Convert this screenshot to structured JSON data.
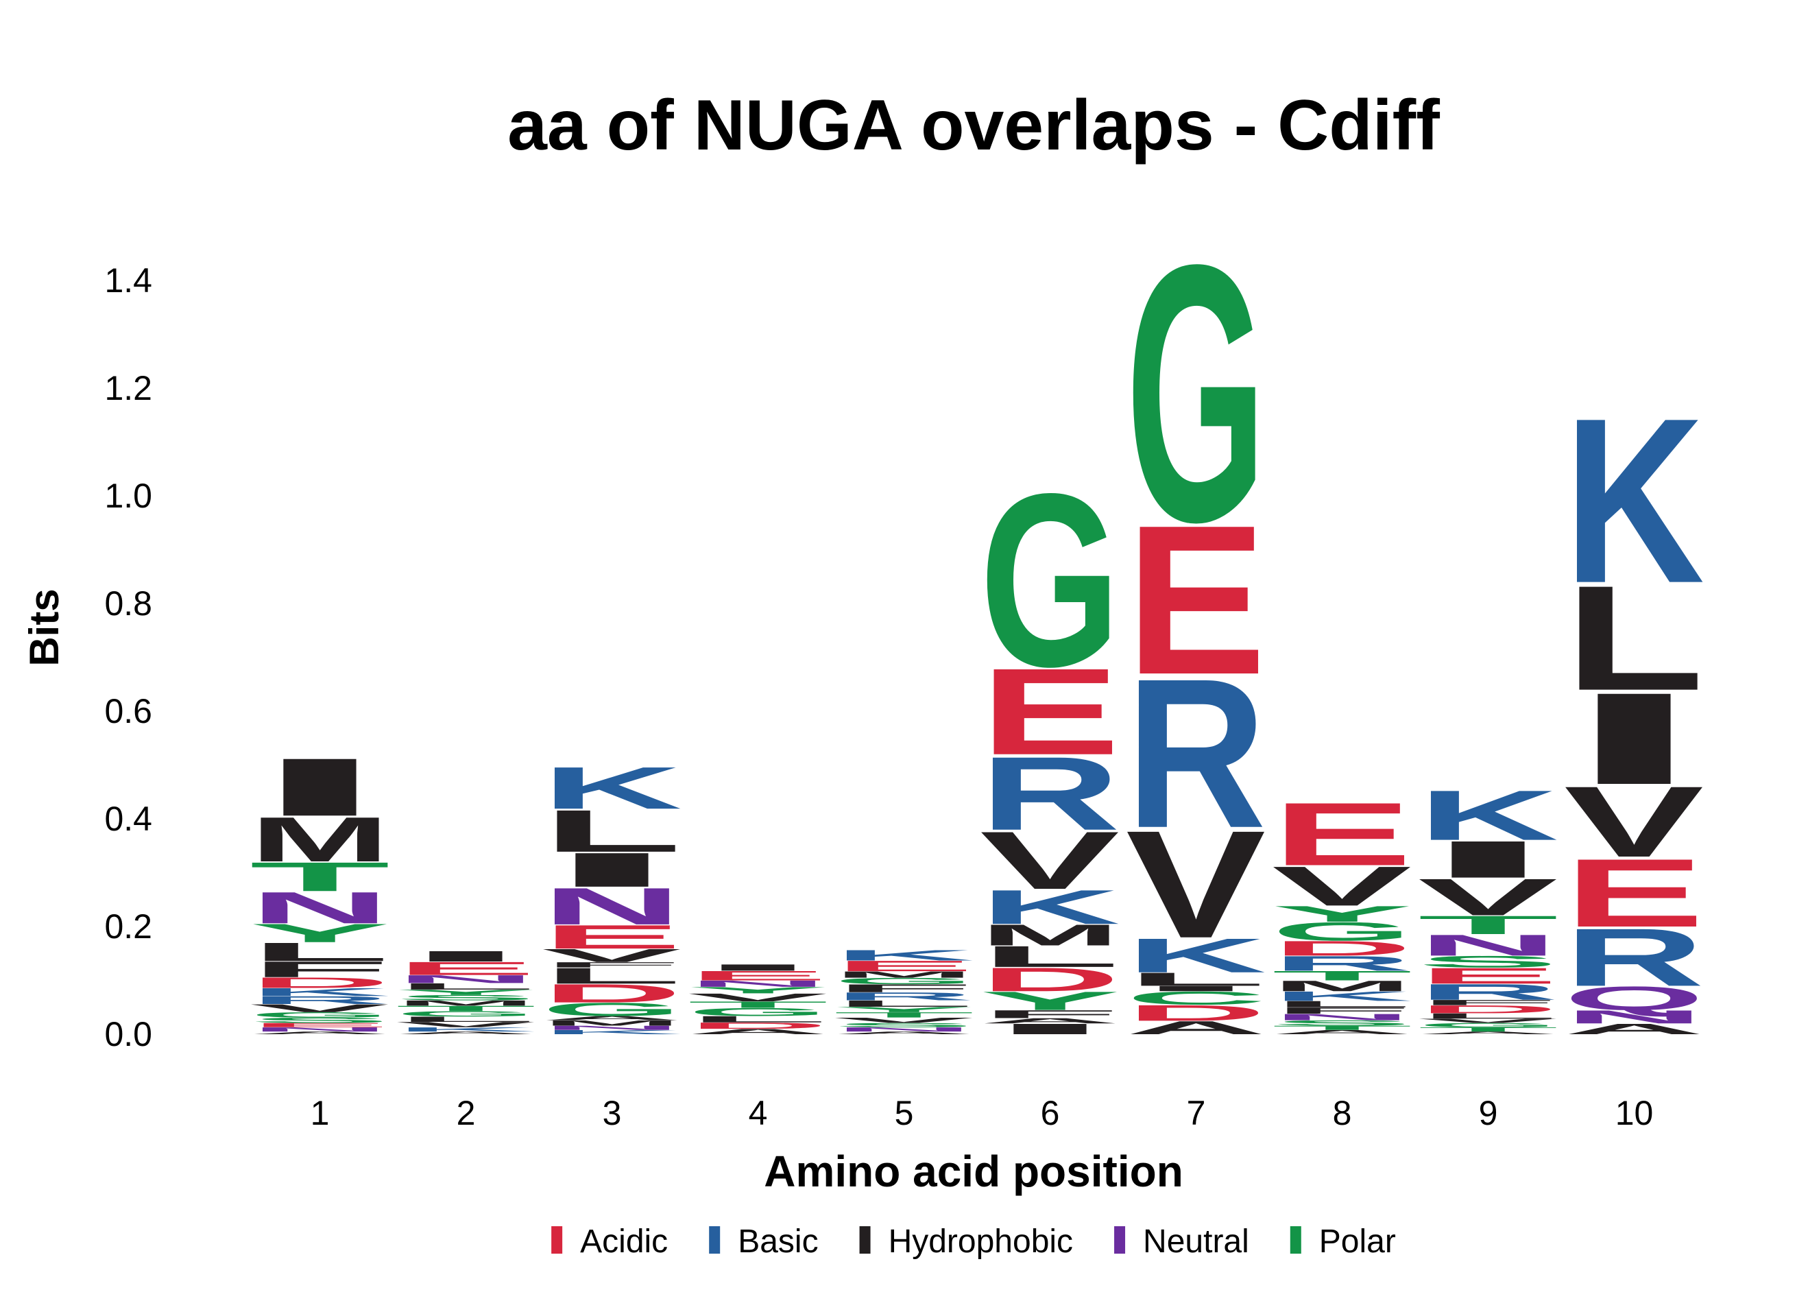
{
  "chart_data": {
    "type": "sequence-logo",
    "title": "aa of NUGA overlaps - Cdiff",
    "xlabel": "Amino acid position",
    "ylabel": "Bits",
    "ylim": [
      0,
      1.5
    ],
    "y_ticks": [
      "0.0",
      "0.2",
      "0.4",
      "0.6",
      "0.8",
      "1.0",
      "1.2",
      "1.4"
    ],
    "y_tick_values": [
      0.0,
      0.2,
      0.4,
      0.6,
      0.8,
      1.0,
      1.2,
      1.4
    ],
    "categories": [
      "1",
      "2",
      "3",
      "4",
      "5",
      "6",
      "7",
      "8",
      "9",
      "10"
    ],
    "grid": false,
    "legend_position": "bottom",
    "legend": [
      {
        "name": "Acidic",
        "color": "#d7263d"
      },
      {
        "name": "Basic",
        "color": "#265f9e"
      },
      {
        "name": "Hydrophobic",
        "color": "#231f20"
      },
      {
        "name": "Neutral",
        "color": "#6a2d9f"
      },
      {
        "name": "Polar",
        "color": "#139447"
      }
    ],
    "groups": {
      "D": "Acidic",
      "E": "Acidic",
      "K": "Basic",
      "R": "Basic",
      "H": "Basic",
      "A": "Hydrophobic",
      "V": "Hydrophobic",
      "L": "Hydrophobic",
      "I": "Hydrophobic",
      "P": "Hydrophobic",
      "W": "Hydrophobic",
      "F": "Hydrophobic",
      "M": "Hydrophobic",
      "N": "Neutral",
      "Q": "Neutral",
      "G": "Polar",
      "S": "Polar",
      "T": "Polar",
      "Y": "Polar",
      "C": "Polar"
    },
    "positions": [
      {
        "position": "1",
        "stack": [
          {
            "letter": "A",
            "bits": 0.005
          },
          {
            "letter": "N",
            "bits": 0.008
          },
          {
            "letter": "E",
            "bits": 0.008
          },
          {
            "letter": "S",
            "bits": 0.01
          },
          {
            "letter": "G",
            "bits": 0.01
          },
          {
            "letter": "V",
            "bits": 0.015
          },
          {
            "letter": "R",
            "bits": 0.015
          },
          {
            "letter": "K",
            "bits": 0.015
          },
          {
            "letter": "D",
            "bits": 0.02
          },
          {
            "letter": "F",
            "bits": 0.03
          },
          {
            "letter": "L",
            "bits": 0.035
          },
          {
            "letter": "Y",
            "bits": 0.035
          },
          {
            "letter": "N",
            "bits": 0.06
          },
          {
            "letter": "T",
            "bits": 0.055
          },
          {
            "letter": "M",
            "bits": 0.085
          },
          {
            "letter": "I",
            "bits": 0.11
          }
        ]
      },
      {
        "position": "2",
        "stack": [
          {
            "letter": "A",
            "bits": 0.005
          },
          {
            "letter": "K",
            "bits": 0.008
          },
          {
            "letter": "V",
            "bits": 0.01
          },
          {
            "letter": "L",
            "bits": 0.01
          },
          {
            "letter": "G",
            "bits": 0.01
          },
          {
            "letter": "T",
            "bits": 0.01
          },
          {
            "letter": "M",
            "bits": 0.01
          },
          {
            "letter": "S",
            "bits": 0.01
          },
          {
            "letter": "Y",
            "bits": 0.01
          },
          {
            "letter": "L",
            "bits": 0.012
          },
          {
            "letter": "N",
            "bits": 0.015
          },
          {
            "letter": "E",
            "bits": 0.025
          },
          {
            "letter": "I",
            "bits": 0.02
          }
        ]
      },
      {
        "position": "3",
        "stack": [
          {
            "letter": "K",
            "bits": 0.008
          },
          {
            "letter": "N",
            "bits": 0.008
          },
          {
            "letter": "M",
            "bits": 0.01
          },
          {
            "letter": "A",
            "bits": 0.008
          },
          {
            "letter": "G",
            "bits": 0.025
          },
          {
            "letter": "D",
            "bits": 0.035
          },
          {
            "letter": "L",
            "bits": 0.03
          },
          {
            "letter": "F",
            "bits": 0.01
          },
          {
            "letter": "V",
            "bits": 0.025
          },
          {
            "letter": "E",
            "bits": 0.045
          },
          {
            "letter": "N",
            "bits": 0.07
          },
          {
            "letter": "I",
            "bits": 0.065
          },
          {
            "letter": "L",
            "bits": 0.08
          },
          {
            "letter": "K",
            "bits": 0.08
          }
        ]
      },
      {
        "position": "4",
        "stack": [
          {
            "letter": "A",
            "bits": 0.01
          },
          {
            "letter": "D",
            "bits": 0.012
          },
          {
            "letter": "L",
            "bits": 0.012
          },
          {
            "letter": "G",
            "bits": 0.015
          },
          {
            "letter": "T",
            "bits": 0.012
          },
          {
            "letter": "V",
            "bits": 0.015
          },
          {
            "letter": "Y",
            "bits": 0.012
          },
          {
            "letter": "N",
            "bits": 0.012
          },
          {
            "letter": "E",
            "bits": 0.018
          },
          {
            "letter": "I",
            "bits": 0.012
          }
        ]
      },
      {
        "position": "5",
        "stack": [
          {
            "letter": "A",
            "bits": 0.005
          },
          {
            "letter": "N",
            "bits": 0.008
          },
          {
            "letter": "S",
            "bits": 0.008
          },
          {
            "letter": "V",
            "bits": 0.01
          },
          {
            "letter": "T",
            "bits": 0.01
          },
          {
            "letter": "Y",
            "bits": 0.01
          },
          {
            "letter": "L",
            "bits": 0.012
          },
          {
            "letter": "R",
            "bits": 0.015
          },
          {
            "letter": "F",
            "bits": 0.015
          },
          {
            "letter": "G",
            "bits": 0.012
          },
          {
            "letter": "M",
            "bits": 0.012
          },
          {
            "letter": "E",
            "bits": 0.02
          },
          {
            "letter": "K",
            "bits": 0.02
          }
        ]
      },
      {
        "position": "6",
        "stack": [
          {
            "letter": "I",
            "bits": 0.02
          },
          {
            "letter": "A",
            "bits": 0.01
          },
          {
            "letter": "F",
            "bits": 0.015
          },
          {
            "letter": "Y",
            "bits": 0.035
          },
          {
            "letter": "D",
            "bits": 0.045
          },
          {
            "letter": "L",
            "bits": 0.04
          },
          {
            "letter": "M",
            "bits": 0.04
          },
          {
            "letter": "K",
            "bits": 0.065
          },
          {
            "letter": "V",
            "bits": 0.11
          },
          {
            "letter": "R",
            "bits": 0.14
          },
          {
            "letter": "E",
            "bits": 0.165
          },
          {
            "letter": "G",
            "bits": 0.33
          }
        ]
      },
      {
        "position": "7",
        "stack": [
          {
            "letter": "A",
            "bits": 0.025
          },
          {
            "letter": "D",
            "bits": 0.03
          },
          {
            "letter": "C",
            "bits": 0.025
          },
          {
            "letter": "I",
            "bits": 0.01
          },
          {
            "letter": "L",
            "bits": 0.025
          },
          {
            "letter": "K",
            "bits": 0.065
          },
          {
            "letter": "V",
            "bits": 0.205
          },
          {
            "letter": "R",
            "bits": 0.285
          },
          {
            "letter": "E",
            "bits": 0.285
          },
          {
            "letter": "G",
            "bits": 0.49
          }
        ]
      },
      {
        "position": "8",
        "stack": [
          {
            "letter": "A",
            "bits": 0.008
          },
          {
            "letter": "T",
            "bits": 0.008
          },
          {
            "letter": "S",
            "bits": 0.01
          },
          {
            "letter": "N",
            "bits": 0.012
          },
          {
            "letter": "F",
            "bits": 0.012
          },
          {
            "letter": "L",
            "bits": 0.012
          },
          {
            "letter": "K",
            "bits": 0.018
          },
          {
            "letter": "M",
            "bits": 0.02
          },
          {
            "letter": "T",
            "bits": 0.018
          },
          {
            "letter": "R",
            "bits": 0.028
          },
          {
            "letter": "D",
            "bits": 0.028
          },
          {
            "letter": "G",
            "bits": 0.035
          },
          {
            "letter": "Y",
            "bits": 0.03
          },
          {
            "letter": "V",
            "bits": 0.075
          },
          {
            "letter": "E",
            "bits": 0.12
          }
        ]
      },
      {
        "position": "9",
        "stack": [
          {
            "letter": "A",
            "bits": 0.005
          },
          {
            "letter": "T",
            "bits": 0.008
          },
          {
            "letter": "G",
            "bits": 0.008
          },
          {
            "letter": "V",
            "bits": 0.008
          },
          {
            "letter": "L",
            "bits": 0.01
          },
          {
            "letter": "D",
            "bits": 0.015
          },
          {
            "letter": "F",
            "bits": 0.01
          },
          {
            "letter": "R",
            "bits": 0.03
          },
          {
            "letter": "E",
            "bits": 0.03
          },
          {
            "letter": "S",
            "bits": 0.022
          },
          {
            "letter": "N",
            "bits": 0.04
          },
          {
            "letter": "T",
            "bits": 0.035
          },
          {
            "letter": "V",
            "bits": 0.07
          },
          {
            "letter": "I",
            "bits": 0.07
          },
          {
            "letter": "K",
            "bits": 0.095
          }
        ]
      },
      {
        "position": "10",
        "stack": [
          {
            "letter": "A",
            "bits": 0.02
          },
          {
            "letter": "N",
            "bits": 0.025
          },
          {
            "letter": "Q",
            "bits": 0.045
          },
          {
            "letter": "R",
            "bits": 0.11
          },
          {
            "letter": "E",
            "bits": 0.13
          },
          {
            "letter": "V",
            "bits": 0.135
          },
          {
            "letter": "I",
            "bits": 0.175
          },
          {
            "letter": "L",
            "bits": 0.2
          },
          {
            "letter": "K",
            "bits": 0.315
          }
        ]
      }
    ]
  }
}
